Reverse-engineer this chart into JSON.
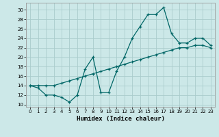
{
  "xlabel": "Humidex (Indice chaleur)",
  "bg_color": "#cce8e8",
  "grid_color": "#aacccc",
  "line_color": "#006666",
  "xlim": [
    -0.5,
    23.5
  ],
  "ylim": [
    9.5,
    31.5
  ],
  "xticks": [
    0,
    1,
    2,
    3,
    4,
    5,
    6,
    7,
    8,
    9,
    10,
    11,
    12,
    13,
    14,
    15,
    16,
    17,
    18,
    19,
    20,
    21,
    22,
    23
  ],
  "yticks": [
    10,
    12,
    14,
    16,
    18,
    20,
    22,
    24,
    26,
    28,
    30
  ],
  "curve1_x": [
    0,
    1,
    2,
    3,
    4,
    5,
    6,
    7,
    8,
    9,
    10,
    11,
    12,
    13,
    14,
    15,
    16,
    17,
    18,
    19,
    20,
    21,
    22,
    23
  ],
  "curve1_y": [
    14,
    13.5,
    12,
    12,
    11.5,
    10.5,
    12,
    17.5,
    20,
    12.5,
    12.5,
    17,
    20,
    24,
    26.5,
    29,
    29,
    30.5,
    25,
    23,
    23,
    24,
    24,
    22.5
  ],
  "curve2_x": [
    0,
    1,
    2,
    3,
    4,
    5,
    6,
    7,
    8,
    9,
    10,
    11,
    12,
    13,
    14,
    15,
    16,
    17,
    18,
    19,
    20,
    21,
    22,
    23
  ],
  "curve2_y": [
    14,
    14,
    14,
    14,
    14.5,
    15,
    15.5,
    16,
    16.5,
    17,
    17.5,
    18,
    18.5,
    19,
    19.5,
    20,
    20.5,
    21,
    21.5,
    22,
    22,
    22.5,
    22.5,
    22
  ]
}
